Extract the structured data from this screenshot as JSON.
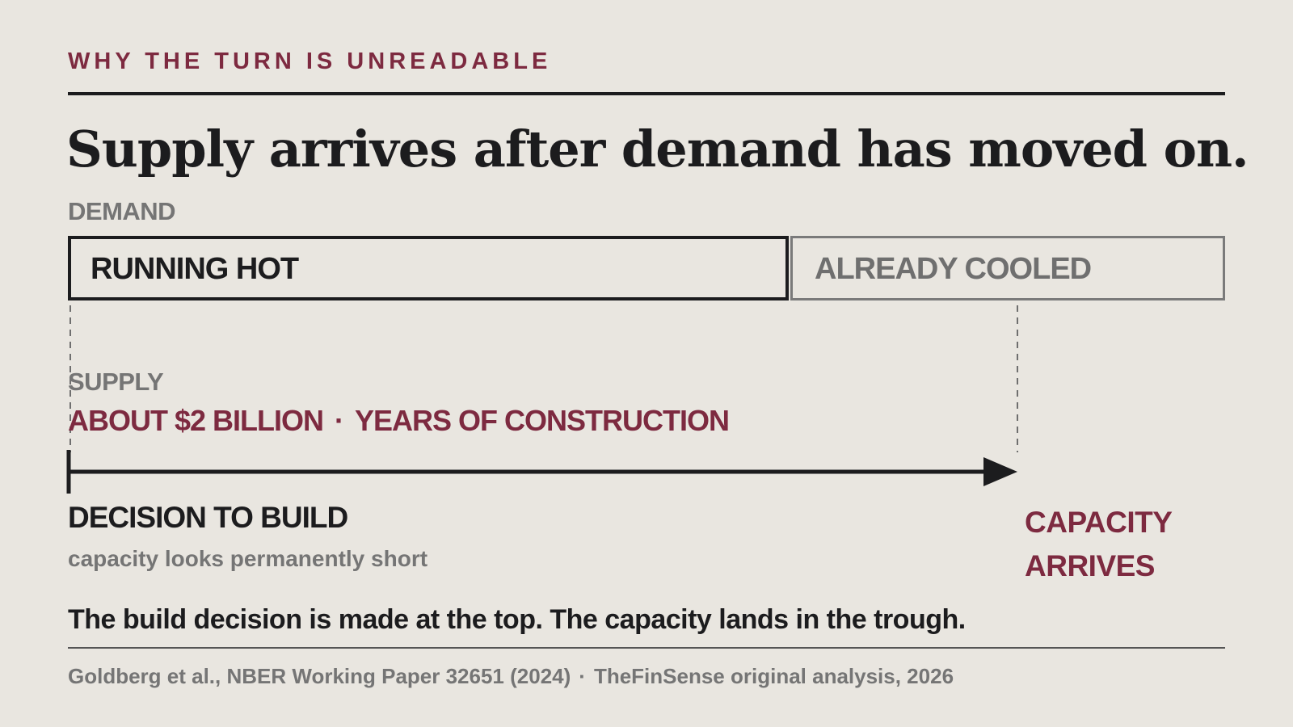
{
  "kicker": "WHY THE TURN IS UNREADABLE",
  "headline": "Supply arrives after demand has moved on.",
  "demand": {
    "label": "DEMAND",
    "phase_hot": "RUNNING HOT",
    "phase_cooled": "ALREADY COOLED"
  },
  "supply": {
    "label": "SUPPLY",
    "cost": "ABOUT $2 BILLION",
    "separator": "·",
    "duration": "YEARS OF CONSTRUCTION"
  },
  "timeline": {
    "start_label": "DECISION TO BUILD",
    "start_sub": "capacity looks permanently short",
    "end_label_line1": "CAPACITY",
    "end_label_line2": "ARRIVES"
  },
  "caption": "The build decision is made at the top. The capacity lands in the trough.",
  "source": {
    "citation": "Goldberg et al., NBER Working Paper 32651 (2024)",
    "separator": "·",
    "analysis": "TheFinSense original analysis, 2026"
  },
  "colors": {
    "background": "#e9e6e0",
    "accent": "#7d2a40",
    "ink": "#1c1c1e",
    "muted": "#757575"
  }
}
